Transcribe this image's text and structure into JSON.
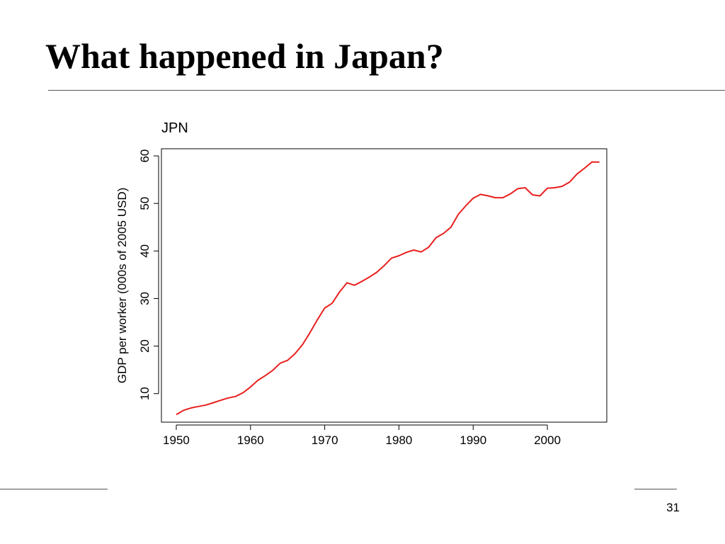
{
  "slide": {
    "title": "What happened in Japan?",
    "page_number": "31"
  },
  "chart_data": {
    "type": "line",
    "title": "JPN",
    "xlabel": "",
    "ylabel": "GDP per worker (000s of 2005 USD)",
    "xlim": [
      1948,
      2008
    ],
    "ylim": [
      4,
      61.5
    ],
    "xticks": [
      1950,
      1960,
      1970,
      1980,
      1990,
      2000
    ],
    "yticks": [
      10,
      20,
      30,
      40,
      50,
      60
    ],
    "grid": false,
    "line_color": "#e8201e",
    "series": [
      {
        "x": [
          1950,
          1951,
          1952,
          1953,
          1954,
          1955,
          1956,
          1957,
          1958,
          1959,
          1960,
          1961,
          1962,
          1963,
          1964,
          1965,
          1966,
          1967,
          1968,
          1969,
          1970,
          1971,
          1972,
          1973,
          1974,
          1975,
          1976,
          1977,
          1978,
          1979,
          1980,
          1981,
          1982,
          1983,
          1984,
          1985,
          1986,
          1987,
          1988,
          1989,
          1990,
          1991,
          1992,
          1993,
          1994,
          1995,
          1996,
          1997,
          1998,
          1999,
          2000,
          2001,
          2002,
          2003,
          2004,
          2005,
          2006,
          2007
        ],
        "y": [
          5.6,
          6.5,
          7.0,
          7.3,
          7.6,
          8.1,
          8.6,
          9.1,
          9.4,
          10.2,
          11.4,
          12.8,
          13.8,
          14.9,
          16.4,
          17.0,
          18.4,
          20.3,
          22.8,
          25.5,
          28.0,
          29.0,
          31.4,
          33.3,
          32.8,
          33.6,
          34.5,
          35.5,
          36.9,
          38.5,
          39.0,
          39.7,
          40.2,
          39.8,
          40.8,
          42.8,
          43.7,
          45.0,
          47.7,
          49.5,
          51.1,
          51.9,
          51.6,
          51.2,
          51.2,
          52.0,
          53.1,
          53.3,
          51.8,
          51.6,
          53.2,
          53.3,
          53.6,
          54.5,
          56.2,
          57.4,
          58.7,
          58.7
        ]
      }
    ]
  }
}
